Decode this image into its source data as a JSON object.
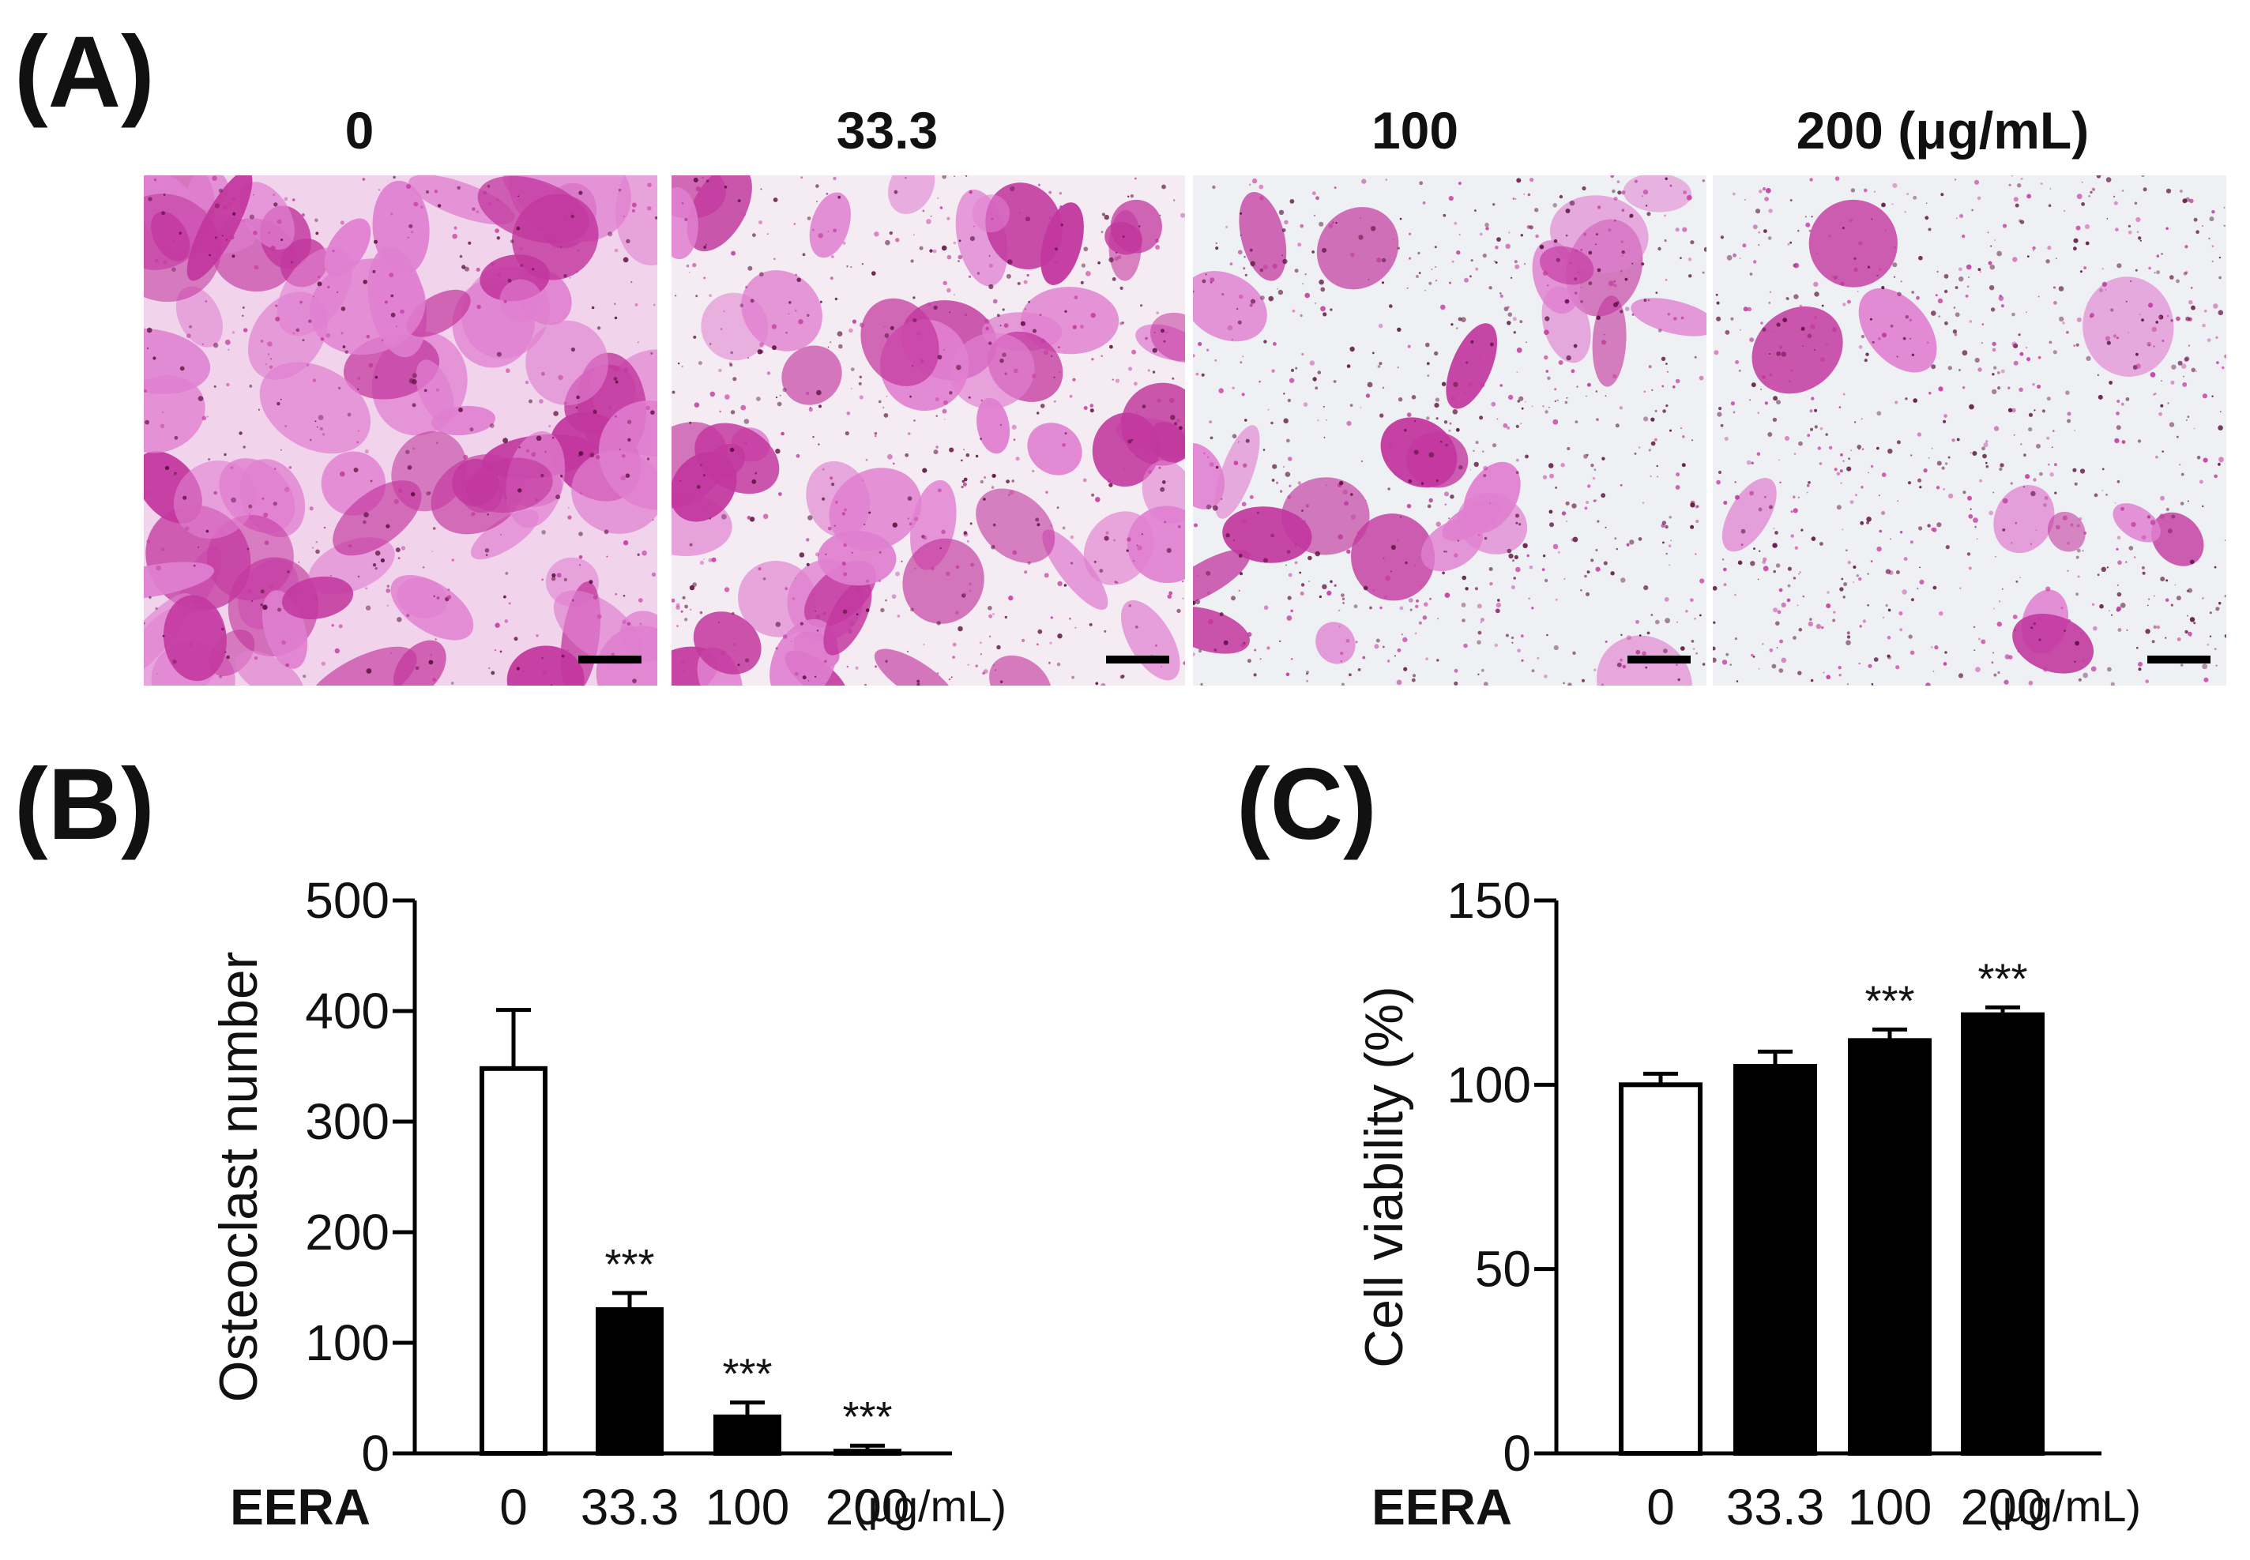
{
  "panels": {
    "a": "(A)",
    "b": "(B)",
    "c": "(C)"
  },
  "micrographs": {
    "titles": [
      "0",
      "33.3",
      "100",
      "200 (μg/mL)"
    ],
    "stain_density": [
      0.95,
      0.65,
      0.3,
      0.12
    ],
    "colors": {
      "stain": "#c2379e",
      "stain_light": "#e07fd0",
      "background": "#eef0f4",
      "dark_dot": "#5a0f3c"
    }
  },
  "chart_data": [
    {
      "type": "bar",
      "panel": "(B)",
      "ylabel": "Osteoclast number",
      "xlabel": "EERA",
      "unit": "(μg/mL)",
      "categories": [
        "0",
        "33.3",
        "100",
        "200"
      ],
      "values": [
        348,
        130,
        33,
        2
      ],
      "errors": [
        53,
        15,
        13,
        5
      ],
      "annotations": [
        "",
        "***",
        "***",
        "***"
      ],
      "ylim": [
        0,
        500
      ],
      "yticks": [
        "0",
        "100",
        "200",
        "300",
        "400",
        "500"
      ],
      "bar_fills": [
        "#ffffff",
        "#000000",
        "#000000",
        "#000000"
      ]
    },
    {
      "type": "bar",
      "panel": "(C)",
      "ylabel": "Cell viability (%)",
      "xlabel": "EERA",
      "unit": "(μg/mL)",
      "categories": [
        "0",
        "33.3",
        "100",
        "200"
      ],
      "values": [
        100,
        105,
        112,
        119
      ],
      "errors": [
        3,
        4,
        3,
        2
      ],
      "annotations": [
        "",
        "",
        "***",
        "***"
      ],
      "ylim": [
        0,
        150
      ],
      "yticks": [
        "0",
        "50",
        "100",
        "150"
      ],
      "bar_fills": [
        "#ffffff",
        "#000000",
        "#000000",
        "#000000"
      ]
    }
  ]
}
